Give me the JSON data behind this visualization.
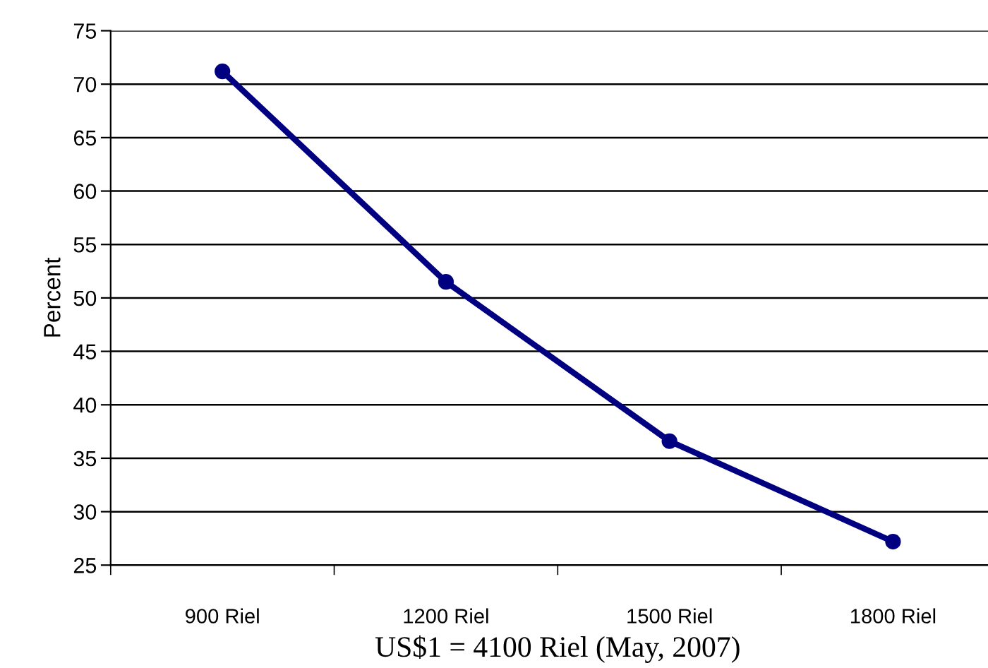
{
  "chart_data": {
    "type": "line",
    "xlabel": "US$1 = 4100 Riel (May, 2007)",
    "ylabel": "Percent",
    "categories": [
      "900 Riel",
      "1200 Riel",
      "1500 Riel",
      "1800 Riel"
    ],
    "series": [
      {
        "color": "#000080",
        "values": [
          71.2,
          51.5,
          36.6,
          27.2
        ]
      }
    ],
    "ylim": [
      25,
      75
    ],
    "yticks": [
      25,
      30,
      35,
      40,
      45,
      50,
      55,
      60,
      65,
      70,
      75
    ],
    "grid": "y",
    "marker": "circle",
    "line_style": "solid"
  }
}
